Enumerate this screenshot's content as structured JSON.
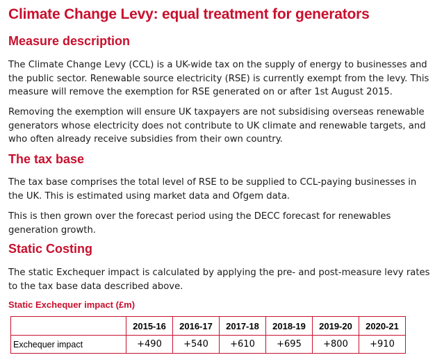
{
  "title": "Climate Change Levy: equal treatment for generators",
  "sections": [
    {
      "heading": "Measure description",
      "paragraphs": [
        "The Climate Change Levy (CCL) is a UK-wide tax on the supply of energy to businesses and the public sector. Renewable source electricity (RSE) is currently exempt from the levy. This measure will remove the exemption for RSE generated on or after 1st August 2015.",
        "Removing the exemption will ensure UK taxpayers are not subsidising overseas renewable generators whose electricity does not contribute to UK climate and renewable targets, and who often already receive subsidies from their own country."
      ]
    },
    {
      "heading": "The tax base",
      "paragraphs": [
        "The tax base comprises the total level of RSE to be supplied to CCL-paying businesses in the UK. This is estimated using market data and Ofgem data.",
        "This is then grown over the forecast period using the DECC forecast for renewables generation growth."
      ]
    },
    {
      "heading": "Static Costing",
      "paragraphs": [
        "The static Exchequer impact is calculated by applying the pre- and post-measure levy rates to the tax base data described above."
      ]
    }
  ],
  "table": {
    "title": "Static Exchequer impact (£m)",
    "columns": [
      "",
      "2015-16",
      "2016-17",
      "2017-18",
      "2018-19",
      "2019-20",
      "2020-21"
    ],
    "rows": [
      {
        "label": "Exchequer impact",
        "values": [
          "+490",
          "+540",
          "+610",
          "+695",
          "+800",
          "+910"
        ]
      }
    ]
  }
}
